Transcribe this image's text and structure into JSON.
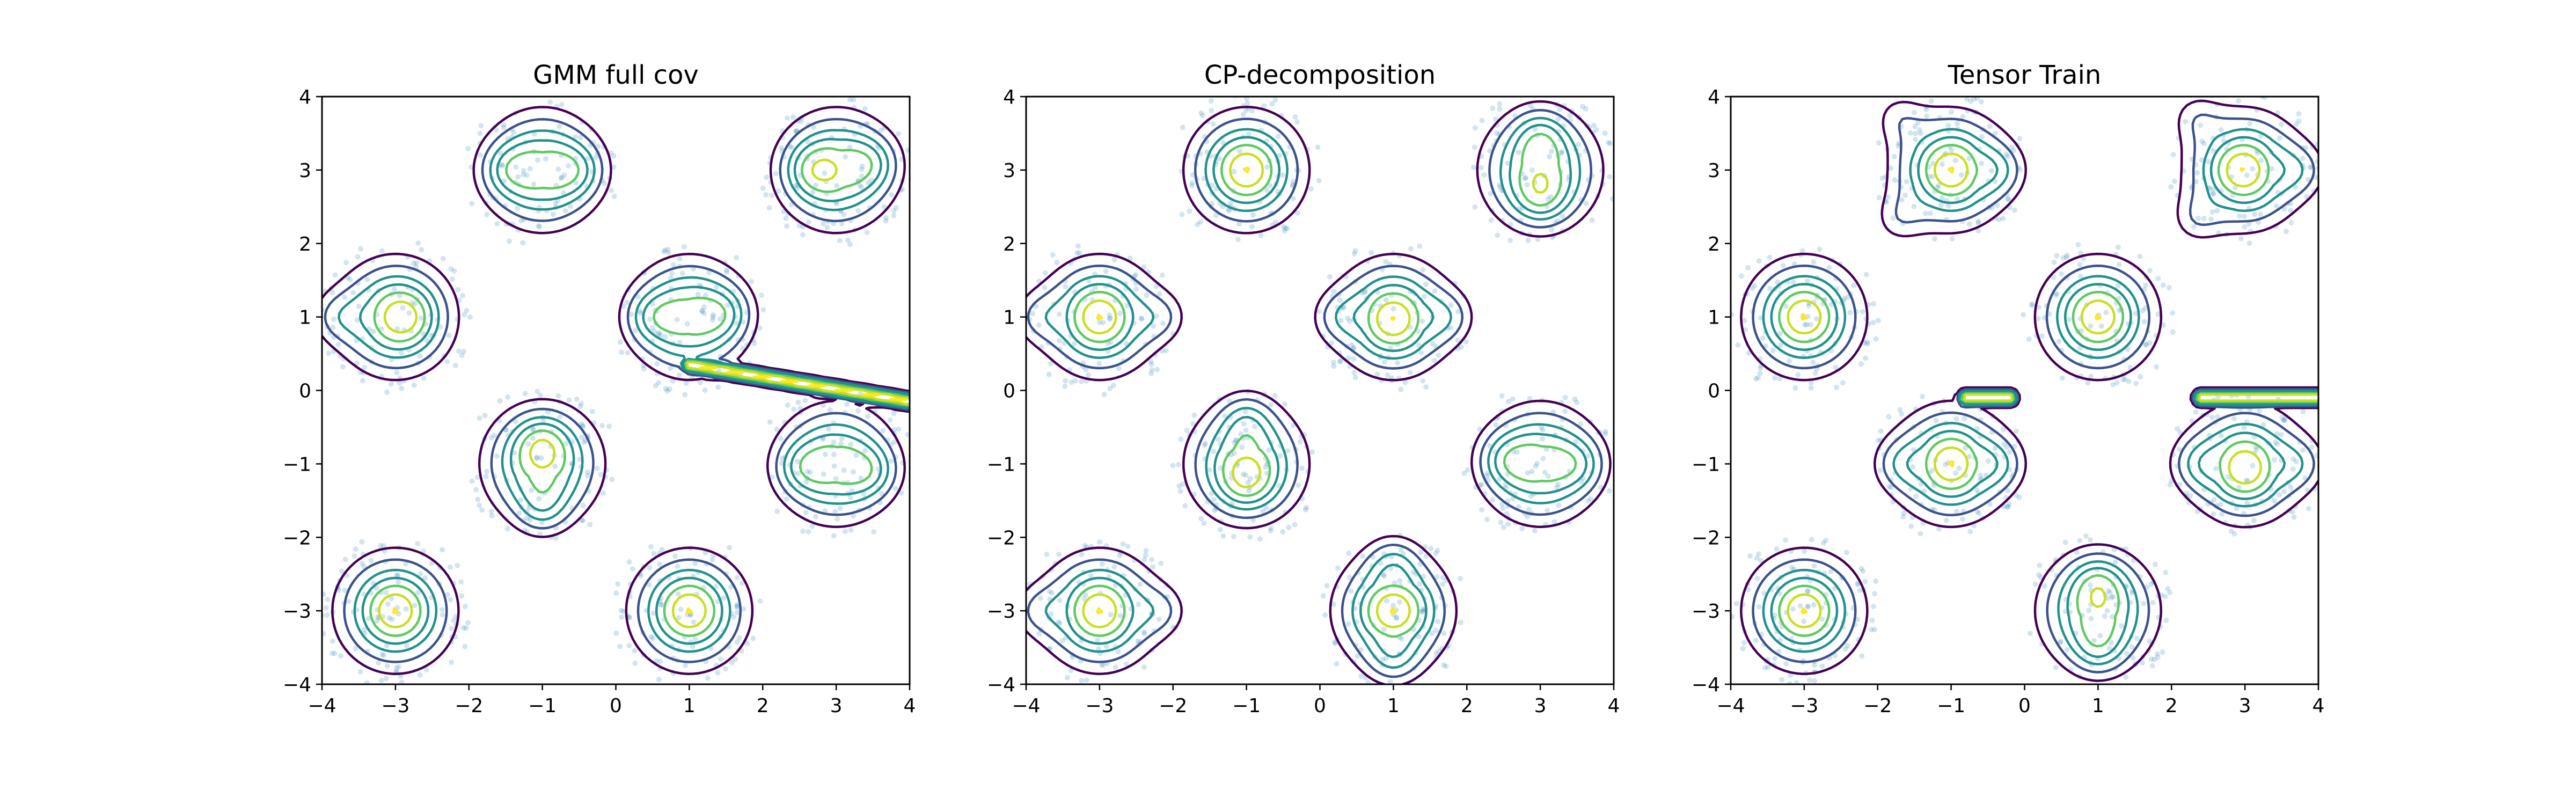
{
  "chart_data": [
    {
      "type": "contour",
      "title": "GMM full cov",
      "xlabel": "",
      "ylabel": "",
      "xlim": [
        -4,
        4
      ],
      "ylim": [
        -4,
        4
      ],
      "xticks": [
        -4,
        -3,
        -2,
        -1,
        0,
        1,
        2,
        3,
        4
      ],
      "yticks": [
        -4,
        -3,
        -2,
        -1,
        0,
        1,
        2,
        3,
        4
      ],
      "grid": false,
      "samples": {
        "color": "#1f77b4",
        "per_cluster": 130,
        "spread": 0.45
      },
      "clusters": [
        {
          "center": [
            -3,
            1
          ],
          "modes": [
            [
              -3.85,
              1.0
            ],
            [
              -2.85,
              1.0
            ]
          ]
        },
        {
          "center": [
            -1,
            3
          ],
          "modes": [
            [
              -1.5,
              3.0
            ],
            [
              -0.5,
              3.0
            ]
          ]
        },
        {
          "center": [
            3,
            3
          ],
          "modes": [
            [
              2.65,
              3.0
            ],
            [
              3.5,
              3.1
            ]
          ]
        },
        {
          "center": [
            1,
            1
          ],
          "modes": [
            [
              0.45,
              1.0
            ],
            [
              1.5,
              1.05
            ]
          ]
        },
        {
          "center": [
            -1,
            -1
          ],
          "modes": [
            [
              -1.0,
              -0.7
            ],
            [
              -1.0,
              -1.65
            ]
          ]
        },
        {
          "center": [
            3,
            -1
          ],
          "modes": [
            [
              2.5,
              -1.05
            ],
            [
              3.5,
              -1.1
            ]
          ]
        },
        {
          "center": [
            -3,
            -3
          ],
          "modes": [
            [
              -3.0,
              -3.0
            ]
          ]
        },
        {
          "center": [
            1,
            -3
          ],
          "modes": [
            [
              1.0,
              -3.0
            ]
          ]
        }
      ],
      "ridges": [
        {
          "from": [
            1.0,
            0.35
          ],
          "to": [
            4.0,
            -0.15
          ]
        }
      ]
    },
    {
      "type": "contour",
      "title": "CP-decomposition",
      "xlabel": "",
      "ylabel": "",
      "xlim": [
        -4,
        4
      ],
      "ylim": [
        -4,
        4
      ],
      "xticks": [
        -4,
        -3,
        -2,
        -1,
        0,
        1,
        2,
        3,
        4
      ],
      "yticks": [
        -4,
        -3,
        -2,
        -1,
        0,
        1,
        2,
        3,
        4
      ],
      "grid": false,
      "samples": {
        "color": "#1f77b4",
        "per_cluster": 130,
        "spread": 0.45
      },
      "clusters": [
        {
          "center": [
            -1,
            3
          ],
          "modes": [
            [
              -1.0,
              3.0
            ]
          ]
        },
        {
          "center": [
            3,
            3
          ],
          "modes": [
            [
              3.0,
              3.5
            ],
            [
              3.0,
              2.6
            ]
          ]
        },
        {
          "center": [
            -3,
            1
          ],
          "modes": [
            [
              -3.9,
              1.0
            ],
            [
              -3.0,
              1.0
            ],
            [
              -2.1,
              1.0
            ]
          ]
        },
        {
          "center": [
            1,
            1
          ],
          "modes": [
            [
              0.2,
              1.0
            ],
            [
              1.0,
              0.95
            ],
            [
              1.8,
              1.0
            ]
          ]
        },
        {
          "center": [
            -1,
            -1
          ],
          "modes": [
            [
              -1.0,
              -0.35
            ],
            [
              -1.0,
              -1.25
            ]
          ]
        },
        {
          "center": [
            3,
            -1
          ],
          "modes": [
            [
              2.5,
              -0.95
            ],
            [
              3.55,
              -1.0
            ]
          ]
        },
        {
          "center": [
            -3,
            -3
          ],
          "modes": [
            [
              -3.9,
              -3.0
            ],
            [
              -3.0,
              -3.0
            ],
            [
              -2.1,
              -3.0
            ]
          ]
        },
        {
          "center": [
            1,
            -3
          ],
          "modes": [
            [
              1.0,
              -2.3
            ],
            [
              1.0,
              -3.0
            ],
            [
              1.0,
              -3.7
            ]
          ]
        }
      ],
      "ridges": []
    },
    {
      "type": "contour",
      "title": "Tensor Train",
      "xlabel": "",
      "ylabel": "",
      "xlim": [
        -4,
        4
      ],
      "ylim": [
        -4,
        4
      ],
      "xticks": [
        -4,
        -3,
        -2,
        -1,
        0,
        1,
        2,
        3,
        4
      ],
      "yticks": [
        -4,
        -3,
        -2,
        -1,
        0,
        1,
        2,
        3,
        4
      ],
      "grid": false,
      "samples": {
        "color": "#1f77b4",
        "per_cluster": 130,
        "spread": 0.45
      },
      "clusters": [
        {
          "center": [
            -1,
            3
          ],
          "modes": [
            [
              -1.75,
              3.75
            ],
            [
              -1.75,
              2.3
            ],
            [
              -1.0,
              3.0
            ],
            [
              -0.3,
              3.0
            ]
          ]
        },
        {
          "center": [
            3,
            3
          ],
          "modes": [
            [
              2.3,
              3.75
            ],
            [
              2.3,
              2.3
            ],
            [
              2.95,
              3.0
            ],
            [
              3.8,
              3.0
            ]
          ]
        },
        {
          "center": [
            -3,
            1
          ],
          "modes": [
            [
              -3.0,
              1.0
            ]
          ]
        },
        {
          "center": [
            1,
            1
          ],
          "modes": [
            [
              1.0,
              1.0
            ]
          ]
        },
        {
          "center": [
            -1,
            -1
          ],
          "modes": [
            [
              -1.75,
              -1.0
            ],
            [
              -1.0,
              -1.0
            ],
            [
              -0.3,
              -1.0
            ]
          ]
        },
        {
          "center": [
            3,
            -1
          ],
          "modes": [
            [
              2.3,
              -1.0
            ],
            [
              3.0,
              -1.1
            ],
            [
              3.8,
              -1.0
            ]
          ]
        },
        {
          "center": [
            -3,
            -3
          ],
          "modes": [
            [
              -3.0,
              -3.0
            ]
          ]
        },
        {
          "center": [
            1,
            -3
          ],
          "modes": [
            [
              1.0,
              -2.6
            ],
            [
              1.0,
              -3.55
            ]
          ]
        }
      ],
      "ridges": [
        {
          "from": [
            -0.8,
            -0.1
          ],
          "to": [
            -0.2,
            -0.1
          ]
        },
        {
          "from": [
            2.4,
            -0.1
          ],
          "to": [
            4.0,
            -0.1
          ]
        }
      ]
    }
  ],
  "style": {
    "contour_colors": [
      "#440154",
      "#3b528b",
      "#21918c",
      "#21918c",
      "#5ec962",
      "#c8e020",
      "#fde725"
    ],
    "sample_color": "#1f77b4",
    "axes_color": "#000000",
    "background": "#ffffff"
  }
}
